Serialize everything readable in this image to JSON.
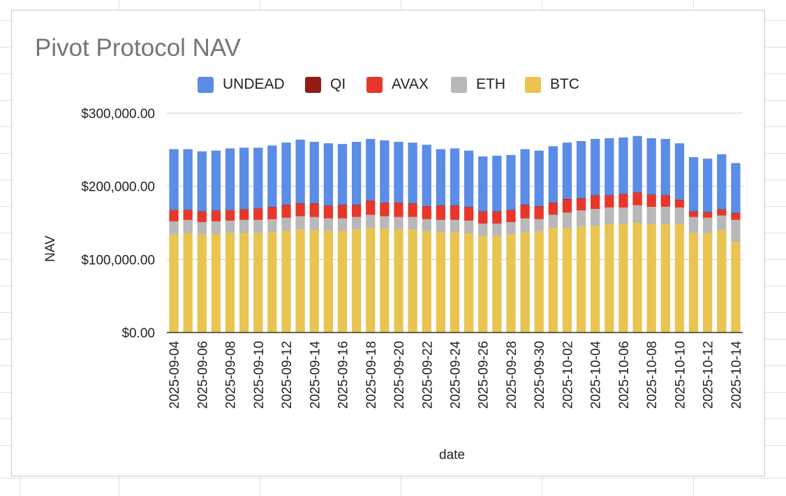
{
  "colors": {
    "UNDEAD": "#5b8ce6",
    "QI": "#931b14",
    "AVAX": "#e8372a",
    "ETH": "#b8b8b8",
    "BTC": "#e9c450",
    "gridline": "#cccccc",
    "axis": "#333333"
  },
  "chart_data": {
    "type": "bar",
    "stacked": true,
    "title": "Pivot Protocol NAV",
    "xlabel": "date",
    "ylabel": "NAV",
    "ylim": [
      0,
      300000
    ],
    "y_ticks": [
      "$0.00",
      "$100,000.00",
      "$200,000.00",
      "$300,000.00"
    ],
    "legend_position": "top",
    "grid": true,
    "x_tick_labels": [
      "2025-09-04",
      "2025-09-06",
      "2025-09-08",
      "2025-09-10",
      "2025-09-12",
      "2025-09-14",
      "2025-09-16",
      "2025-09-18",
      "2025-09-20",
      "2025-09-22",
      "2025-09-24",
      "2025-09-26",
      "2025-09-28",
      "2025-09-30",
      "2025-10-02",
      "2025-10-04",
      "2025-10-06",
      "2025-10-08",
      "2025-10-10",
      "2025-10-12",
      "2025-10-14"
    ],
    "categories": [
      "2025-09-04",
      "2025-09-05",
      "2025-09-06",
      "2025-09-07",
      "2025-09-08",
      "2025-09-09",
      "2025-09-10",
      "2025-09-11",
      "2025-09-12",
      "2025-09-13",
      "2025-09-14",
      "2025-09-15",
      "2025-09-16",
      "2025-09-17",
      "2025-09-18",
      "2025-09-19",
      "2025-09-20",
      "2025-09-21",
      "2025-09-22",
      "2025-09-23",
      "2025-09-24",
      "2025-09-25",
      "2025-09-26",
      "2025-09-27",
      "2025-09-28",
      "2025-09-29",
      "2025-09-30",
      "2025-10-01",
      "2025-10-02",
      "2025-10-03",
      "2025-10-04",
      "2025-10-05",
      "2025-10-06",
      "2025-10-07",
      "2025-10-08",
      "2025-10-09",
      "2025-10-10",
      "2025-10-11",
      "2025-10-12",
      "2025-10-13",
      "2025-10-14"
    ],
    "series": [
      {
        "name": "BTC",
        "values": [
          134000,
          136000,
          134000,
          135000,
          136000,
          136000,
          136000,
          137000,
          139000,
          141000,
          140000,
          139000,
          139000,
          141000,
          143000,
          142000,
          141000,
          141000,
          138000,
          137000,
          137000,
          136000,
          132000,
          132000,
          134000,
          137000,
          138000,
          143000,
          143000,
          145000,
          146000,
          148000,
          149000,
          150000,
          148000,
          148000,
          148000,
          136000,
          136000,
          140000,
          124000
        ]
      },
      {
        "name": "ETH",
        "values": [
          18000,
          18000,
          17000,
          17000,
          17000,
          18000,
          18000,
          18000,
          18000,
          18000,
          18000,
          17000,
          17000,
          17000,
          18000,
          17000,
          17000,
          17000,
          17000,
          17000,
          17000,
          17000,
          17000,
          17000,
          17000,
          19000,
          17000,
          18000,
          21000,
          22000,
          23000,
          23000,
          22000,
          24000,
          24000,
          24000,
          23000,
          22000,
          21000,
          20000,
          30000
        ]
      },
      {
        "name": "AVAX",
        "values": [
          15000,
          13000,
          14000,
          14000,
          14000,
          14000,
          15000,
          16000,
          17000,
          17000,
          18000,
          17000,
          18000,
          16000,
          19000,
          18000,
          19000,
          18000,
          17000,
          19000,
          19000,
          18000,
          16000,
          16000,
          16000,
          18000,
          17000,
          16000,
          18000,
          16000,
          18000,
          16000,
          18000,
          17000,
          16000,
          15000,
          10000,
          7000,
          7000,
          8000,
          9000
        ]
      },
      {
        "name": "QI",
        "values": [
          800,
          800,
          800,
          800,
          800,
          800,
          800,
          800,
          800,
          800,
          800,
          800,
          800,
          800,
          800,
          800,
          800,
          800,
          800,
          800,
          800,
          800,
          800,
          800,
          800,
          800,
          800,
          800,
          800,
          800,
          800,
          800,
          800,
          800,
          800,
          800,
          800,
          800,
          800,
          800,
          800
        ]
      },
      {
        "name": "UNDEAD",
        "values": [
          83000,
          83000,
          82000,
          82000,
          84000,
          84000,
          83000,
          84000,
          85000,
          87000,
          84000,
          85000,
          83000,
          86000,
          84000,
          85000,
          83000,
          83000,
          84000,
          77000,
          78000,
          77000,
          75000,
          76000,
          75000,
          76000,
          76000,
          77000,
          77000,
          78000,
          77000,
          78000,
          77000,
          77000,
          77000,
          77000,
          77000,
          74000,
          73000,
          75000,
          68000
        ]
      }
    ]
  }
}
